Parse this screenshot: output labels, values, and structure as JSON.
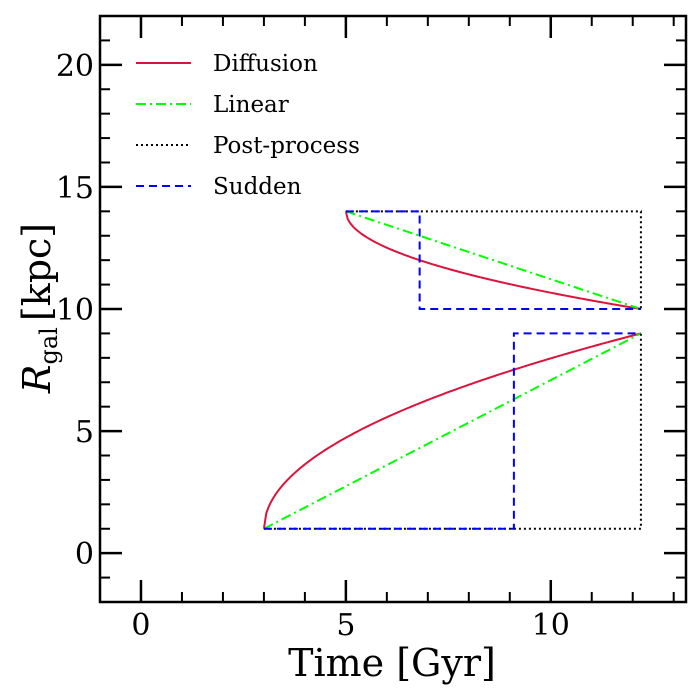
{
  "chart_data": {
    "type": "line",
    "xlabel": "Time [Gyr]",
    "ylabel_main": "R",
    "ylabel_sub": "gal",
    "ylabel_unit": "[kpc]",
    "xlim": [
      -1,
      13.3
    ],
    "ylim": [
      -2,
      22
    ],
    "x_ticks_major": [
      0,
      5,
      10
    ],
    "y_ticks_major": [
      0,
      5,
      10,
      15,
      20
    ],
    "x_tick_labels": [
      "0",
      "5",
      "10"
    ],
    "y_tick_labels": [
      "0",
      "5",
      "10",
      "15",
      "20"
    ],
    "x_minor_step": 1,
    "y_minor_step": 1,
    "grid": false,
    "legend_position": "top-left",
    "series": [
      {
        "name": "Diffusion",
        "style": "solid",
        "color": "#dc143c",
        "tracks": [
          {
            "model": "sqrt-time",
            "t_start": 3.0,
            "t_end": 12.2,
            "r_start": 1.0,
            "r_end": 9.0
          },
          {
            "model": "sqrt-time",
            "t_start": 5.0,
            "t_end": 12.2,
            "r_start": 14.0,
            "r_end": 10.0
          }
        ]
      },
      {
        "name": "Linear",
        "style": "dashdot",
        "color": "#00ff00",
        "tracks": [
          {
            "x": [
              3.0,
              12.2
            ],
            "y": [
              1.0,
              9.0
            ]
          },
          {
            "x": [
              5.0,
              12.2
            ],
            "y": [
              14.0,
              10.0
            ]
          }
        ]
      },
      {
        "name": "Post-process",
        "style": "dotted",
        "color": "#000000",
        "tracks": [
          {
            "x": [
              3.0,
              12.2,
              12.2
            ],
            "y": [
              1.0,
              1.0,
              9.0
            ]
          },
          {
            "x": [
              5.0,
              12.2,
              12.2
            ],
            "y": [
              14.0,
              14.0,
              10.0
            ]
          }
        ]
      },
      {
        "name": "Sudden",
        "style": "dashed",
        "color": "#0000ff",
        "tracks": [
          {
            "x": [
              3.0,
              9.1,
              9.1,
              12.2
            ],
            "y": [
              1.0,
              1.0,
              9.0,
              9.0
            ]
          },
          {
            "x": [
              5.0,
              6.8,
              6.8,
              12.2
            ],
            "y": [
              14.0,
              14.0,
              10.0,
              10.0
            ]
          }
        ]
      }
    ]
  }
}
